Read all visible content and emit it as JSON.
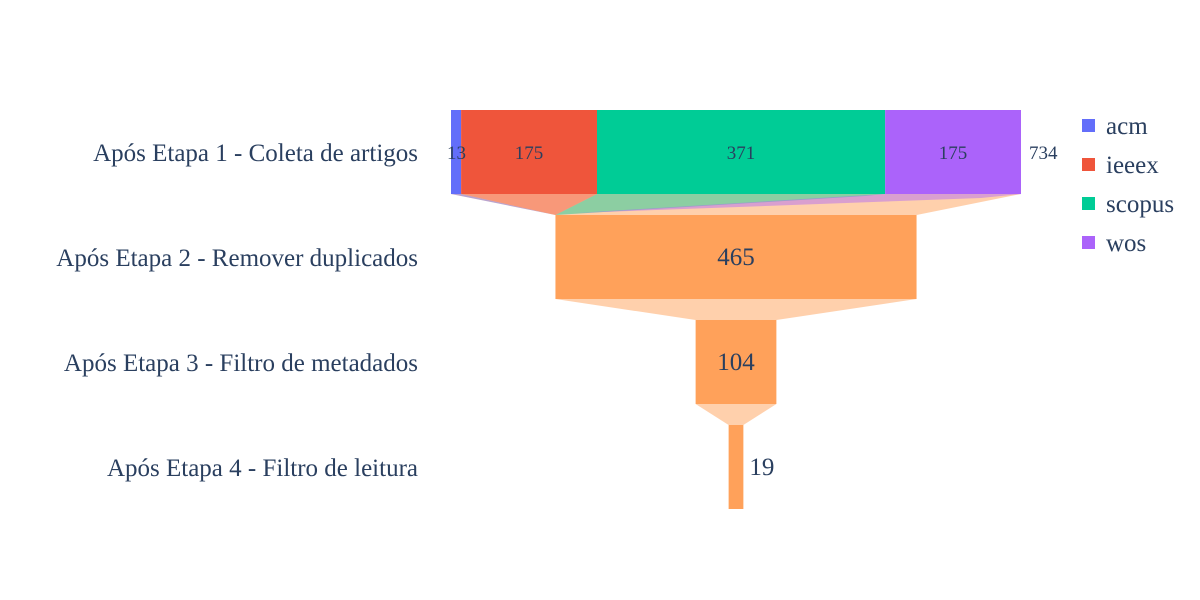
{
  "chart_data": {
    "type": "funnel",
    "categories": [
      "Após Etapa 1 - Coleta de artigos",
      "Após Etapa 2 - Remover duplicados",
      "Após Etapa 3 - Filtro de metadados",
      "Após Etapa 4 - Filtro de leitura"
    ],
    "stage1_series": [
      {
        "name": "acm",
        "value": 13,
        "color": "#636efa"
      },
      {
        "name": "ieeex",
        "value": 175,
        "color": "#EF553B"
      },
      {
        "name": "scopus",
        "value": 371,
        "color": "#00cc96"
      },
      {
        "name": "wos",
        "value": 175,
        "color": "#ab63fa"
      }
    ],
    "stage1_total": 734,
    "later_stages": [
      465,
      104,
      19
    ],
    "later_color": "#FFA15A",
    "legend_position": "top-right"
  }
}
